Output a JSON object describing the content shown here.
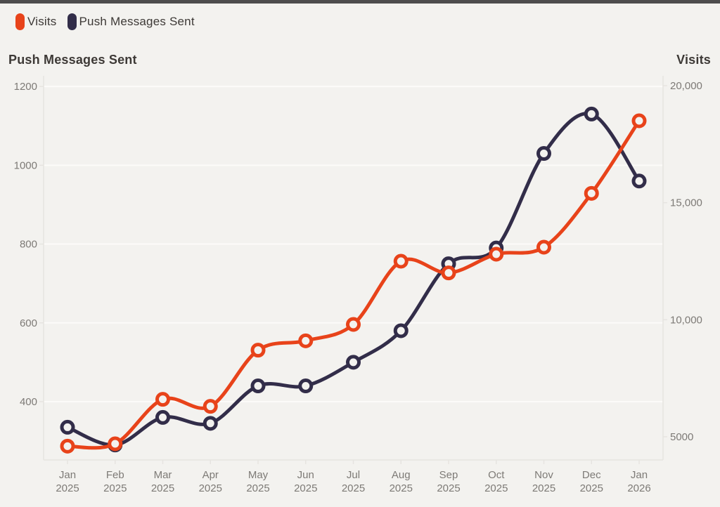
{
  "colors": {
    "background": "#f3f2ef",
    "top_bar": "#4e4d4d",
    "grid_line": "#fcfbf9",
    "plot_border": "#e6e4e0",
    "tick_text": "#7d7a76",
    "title_text": "#3d3936",
    "visits_series": "#e8431a",
    "push_series": "#322d49"
  },
  "legend": [
    {
      "label": "Visits",
      "color": "#e8431a",
      "swatch": "rounded-chip"
    },
    {
      "label": "Push Messages Sent",
      "color": "#322d49",
      "swatch": "rounded-chip"
    }
  ],
  "left_axis": {
    "title": "Push Messages Sent",
    "ticks": [
      400,
      600,
      800,
      1000,
      1200
    ],
    "tick_labels": [
      "400",
      "600",
      "800",
      "1000",
      "1200"
    ],
    "ylim": [
      252,
      1227
    ]
  },
  "right_axis": {
    "title": "Visits",
    "ticks": [
      5000,
      10000,
      15000,
      20000
    ],
    "tick_labels": [
      "5000",
      "10,000",
      "15,000",
      "20,000"
    ],
    "ylim": [
      4010,
      20420
    ]
  },
  "x_axis": {
    "labels": [
      [
        "Jan",
        "2025"
      ],
      [
        "Feb",
        "2025"
      ],
      [
        "Mar",
        "2025"
      ],
      [
        "Apr",
        "2025"
      ],
      [
        "May",
        "2025"
      ],
      [
        "Jun",
        "2025"
      ],
      [
        "Jul",
        "2025"
      ],
      [
        "Aug",
        "2025"
      ],
      [
        "Sep",
        "2025"
      ],
      [
        "Oct",
        "2025"
      ],
      [
        "Nov",
        "2025"
      ],
      [
        "Dec",
        "2025"
      ],
      [
        "Jan",
        "2026"
      ]
    ]
  },
  "chart_data": {
    "type": "line",
    "categories": [
      "Jan 2025",
      "Feb 2025",
      "Mar 2025",
      "Apr 2025",
      "May 2025",
      "Jun 2025",
      "Jul 2025",
      "Aug 2025",
      "Sep 2025",
      "Oct 2025",
      "Nov 2025",
      "Dec 2025",
      "Jan 2026"
    ],
    "series": [
      {
        "name": "Push Messages Sent",
        "axis": "left",
        "color": "#322d49",
        "values": [
          335,
          290,
          360,
          345,
          440,
          440,
          500,
          580,
          750,
          790,
          1030,
          1130,
          960
        ]
      },
      {
        "name": "Visits",
        "axis": "right",
        "color": "#e8431a",
        "values": [
          4600,
          4700,
          6600,
          6300,
          8700,
          9100,
          9800,
          12500,
          12000,
          12800,
          13100,
          15400,
          18500
        ]
      }
    ],
    "title": "",
    "xlabel": "",
    "left_ylabel": "Push Messages Sent",
    "right_ylabel": "Visits",
    "left_ylim": [
      252,
      1227
    ],
    "right_ylim": [
      4010,
      20420
    ],
    "grid": "horizontal-left-ticks",
    "legend_position": "top-left",
    "marker": "open-circle",
    "line_smoothing": true
  }
}
